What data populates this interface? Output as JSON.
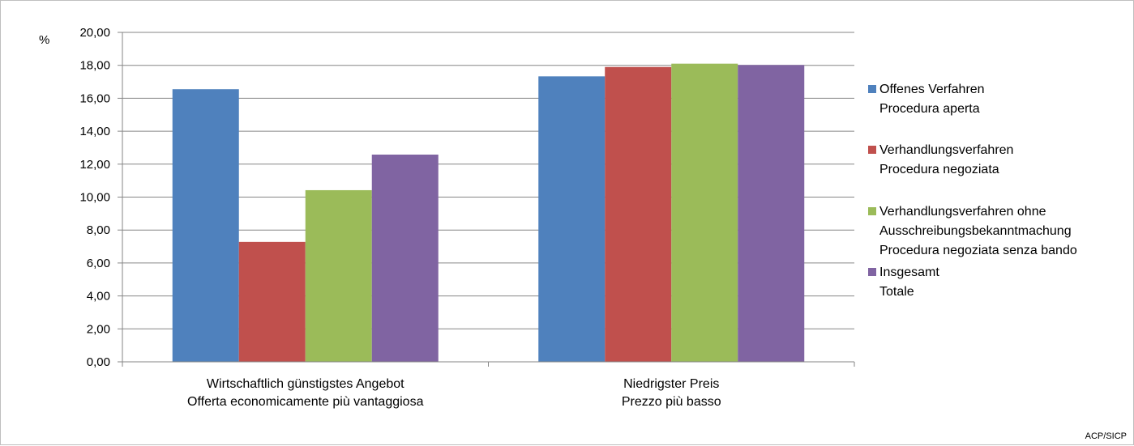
{
  "chart_data": {
    "type": "bar",
    "unit": "%",
    "categories": [
      [
        "Wirtschaftlich günstigstes Angebot",
        "Offerta economicamente più vantaggiosa"
      ],
      [
        "Niedrigster Preis",
        "Prezzo più basso"
      ]
    ],
    "series": [
      {
        "name": [
          "Offenes Verfahren",
          "Procedura aperta"
        ],
        "color": "#4f81bd",
        "values": [
          16.55,
          17.33
        ]
      },
      {
        "name": [
          "Verhandlungsverfahren",
          "Procedura negoziata"
        ],
        "color": "#c0504d",
        "values": [
          7.28,
          17.9
        ]
      },
      {
        "name": [
          "Verhandlungsverfahren ohne",
          "Ausschreibungsbekanntmachung",
          "Procedura negoziata senza bando"
        ],
        "color": "#9bbb59",
        "values": [
          10.42,
          18.1
        ]
      },
      {
        "name": [
          "Insgesamt",
          "Totale"
        ],
        "color": "#8064a2",
        "values": [
          12.58,
          18.02
        ]
      }
    ],
    "ylim": [
      0,
      20
    ],
    "yticks": [
      "0,00",
      "2,00",
      "4,00",
      "6,00",
      "8,00",
      "10,00",
      "12,00",
      "14,00",
      "16,00",
      "18,00",
      "20,00"
    ],
    "grid": true,
    "legend": "right",
    "source": "ACP/SICP"
  }
}
